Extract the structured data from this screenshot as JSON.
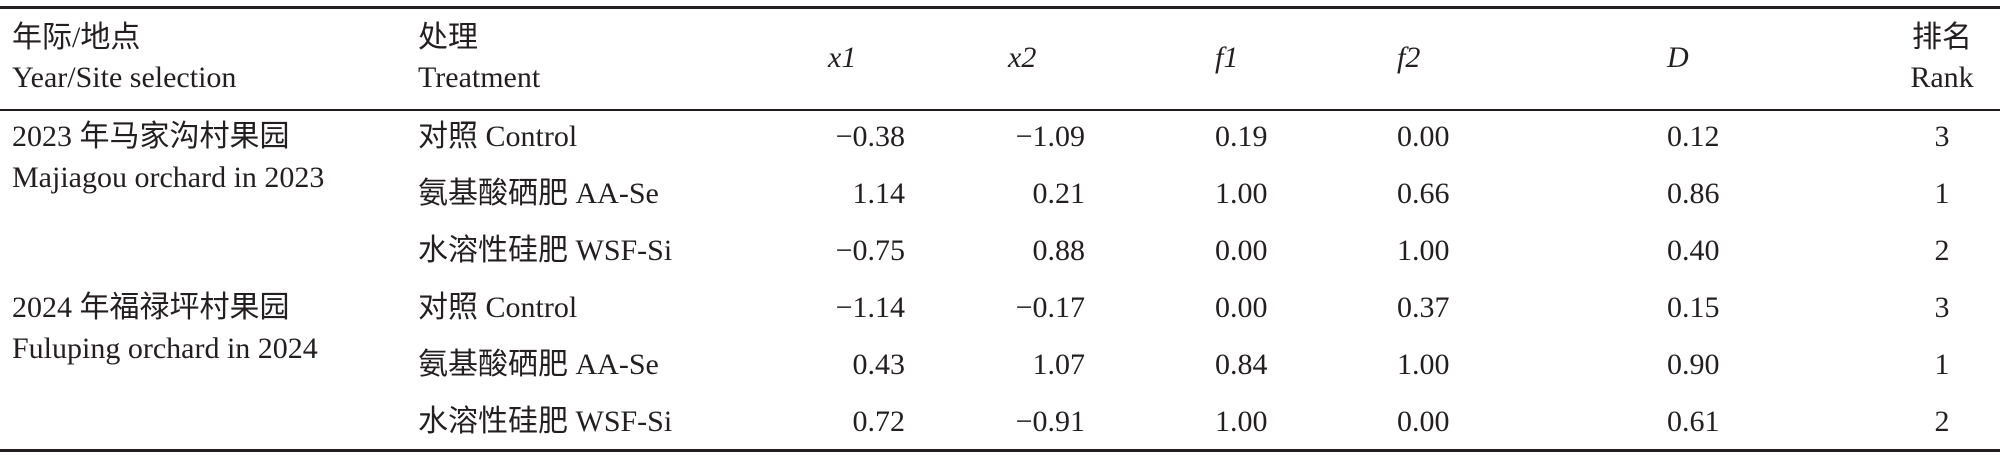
{
  "header": {
    "site": {
      "zh": "年际/地点",
      "en": "Year/Site selection"
    },
    "treatment": {
      "zh": "处理",
      "en": "Treatment"
    },
    "x1": "x1",
    "x2": "x2",
    "f1": "f1",
    "f2": "f2",
    "d": "D",
    "rank": {
      "zh": "排名",
      "en": "Rank"
    }
  },
  "groups": [
    {
      "site_zh": "2023 年马家沟村果园",
      "site_en": "Majiagou orchard in 2023",
      "rows": [
        {
          "treatment": "对照 Control",
          "x1": "−0.38",
          "x2": "−1.09",
          "f1": "0.19",
          "f2": "0.00",
          "d": "0.12",
          "rank": "3"
        },
        {
          "treatment": "氨基酸硒肥 AA-Se",
          "x1": "1.14",
          "x2": "0.21",
          "f1": "1.00",
          "f2": "0.66",
          "d": "0.86",
          "rank": "1"
        },
        {
          "treatment": "水溶性硅肥 WSF-Si",
          "x1": "−0.75",
          "x2": "0.88",
          "f1": "0.00",
          "f2": "1.00",
          "d": "0.40",
          "rank": "2"
        }
      ]
    },
    {
      "site_zh": "2024 年福禄坪村果园",
      "site_en": "Fuluping orchard in 2024",
      "rows": [
        {
          "treatment": "对照 Control",
          "x1": "−1.14",
          "x2": "−0.17",
          "f1": "0.00",
          "f2": "0.37",
          "d": "0.15",
          "rank": "3"
        },
        {
          "treatment": "氨基酸硒肥 AA-Se",
          "x1": "0.43",
          "x2": "1.07",
          "f1": "0.84",
          "f2": "1.00",
          "d": "0.90",
          "rank": "1"
        },
        {
          "treatment": "水溶性硅肥 WSF-Si",
          "x1": "0.72",
          "x2": "−0.91",
          "f1": "1.00",
          "f2": "0.00",
          "d": "0.61",
          "rank": "2"
        }
      ]
    }
  ]
}
